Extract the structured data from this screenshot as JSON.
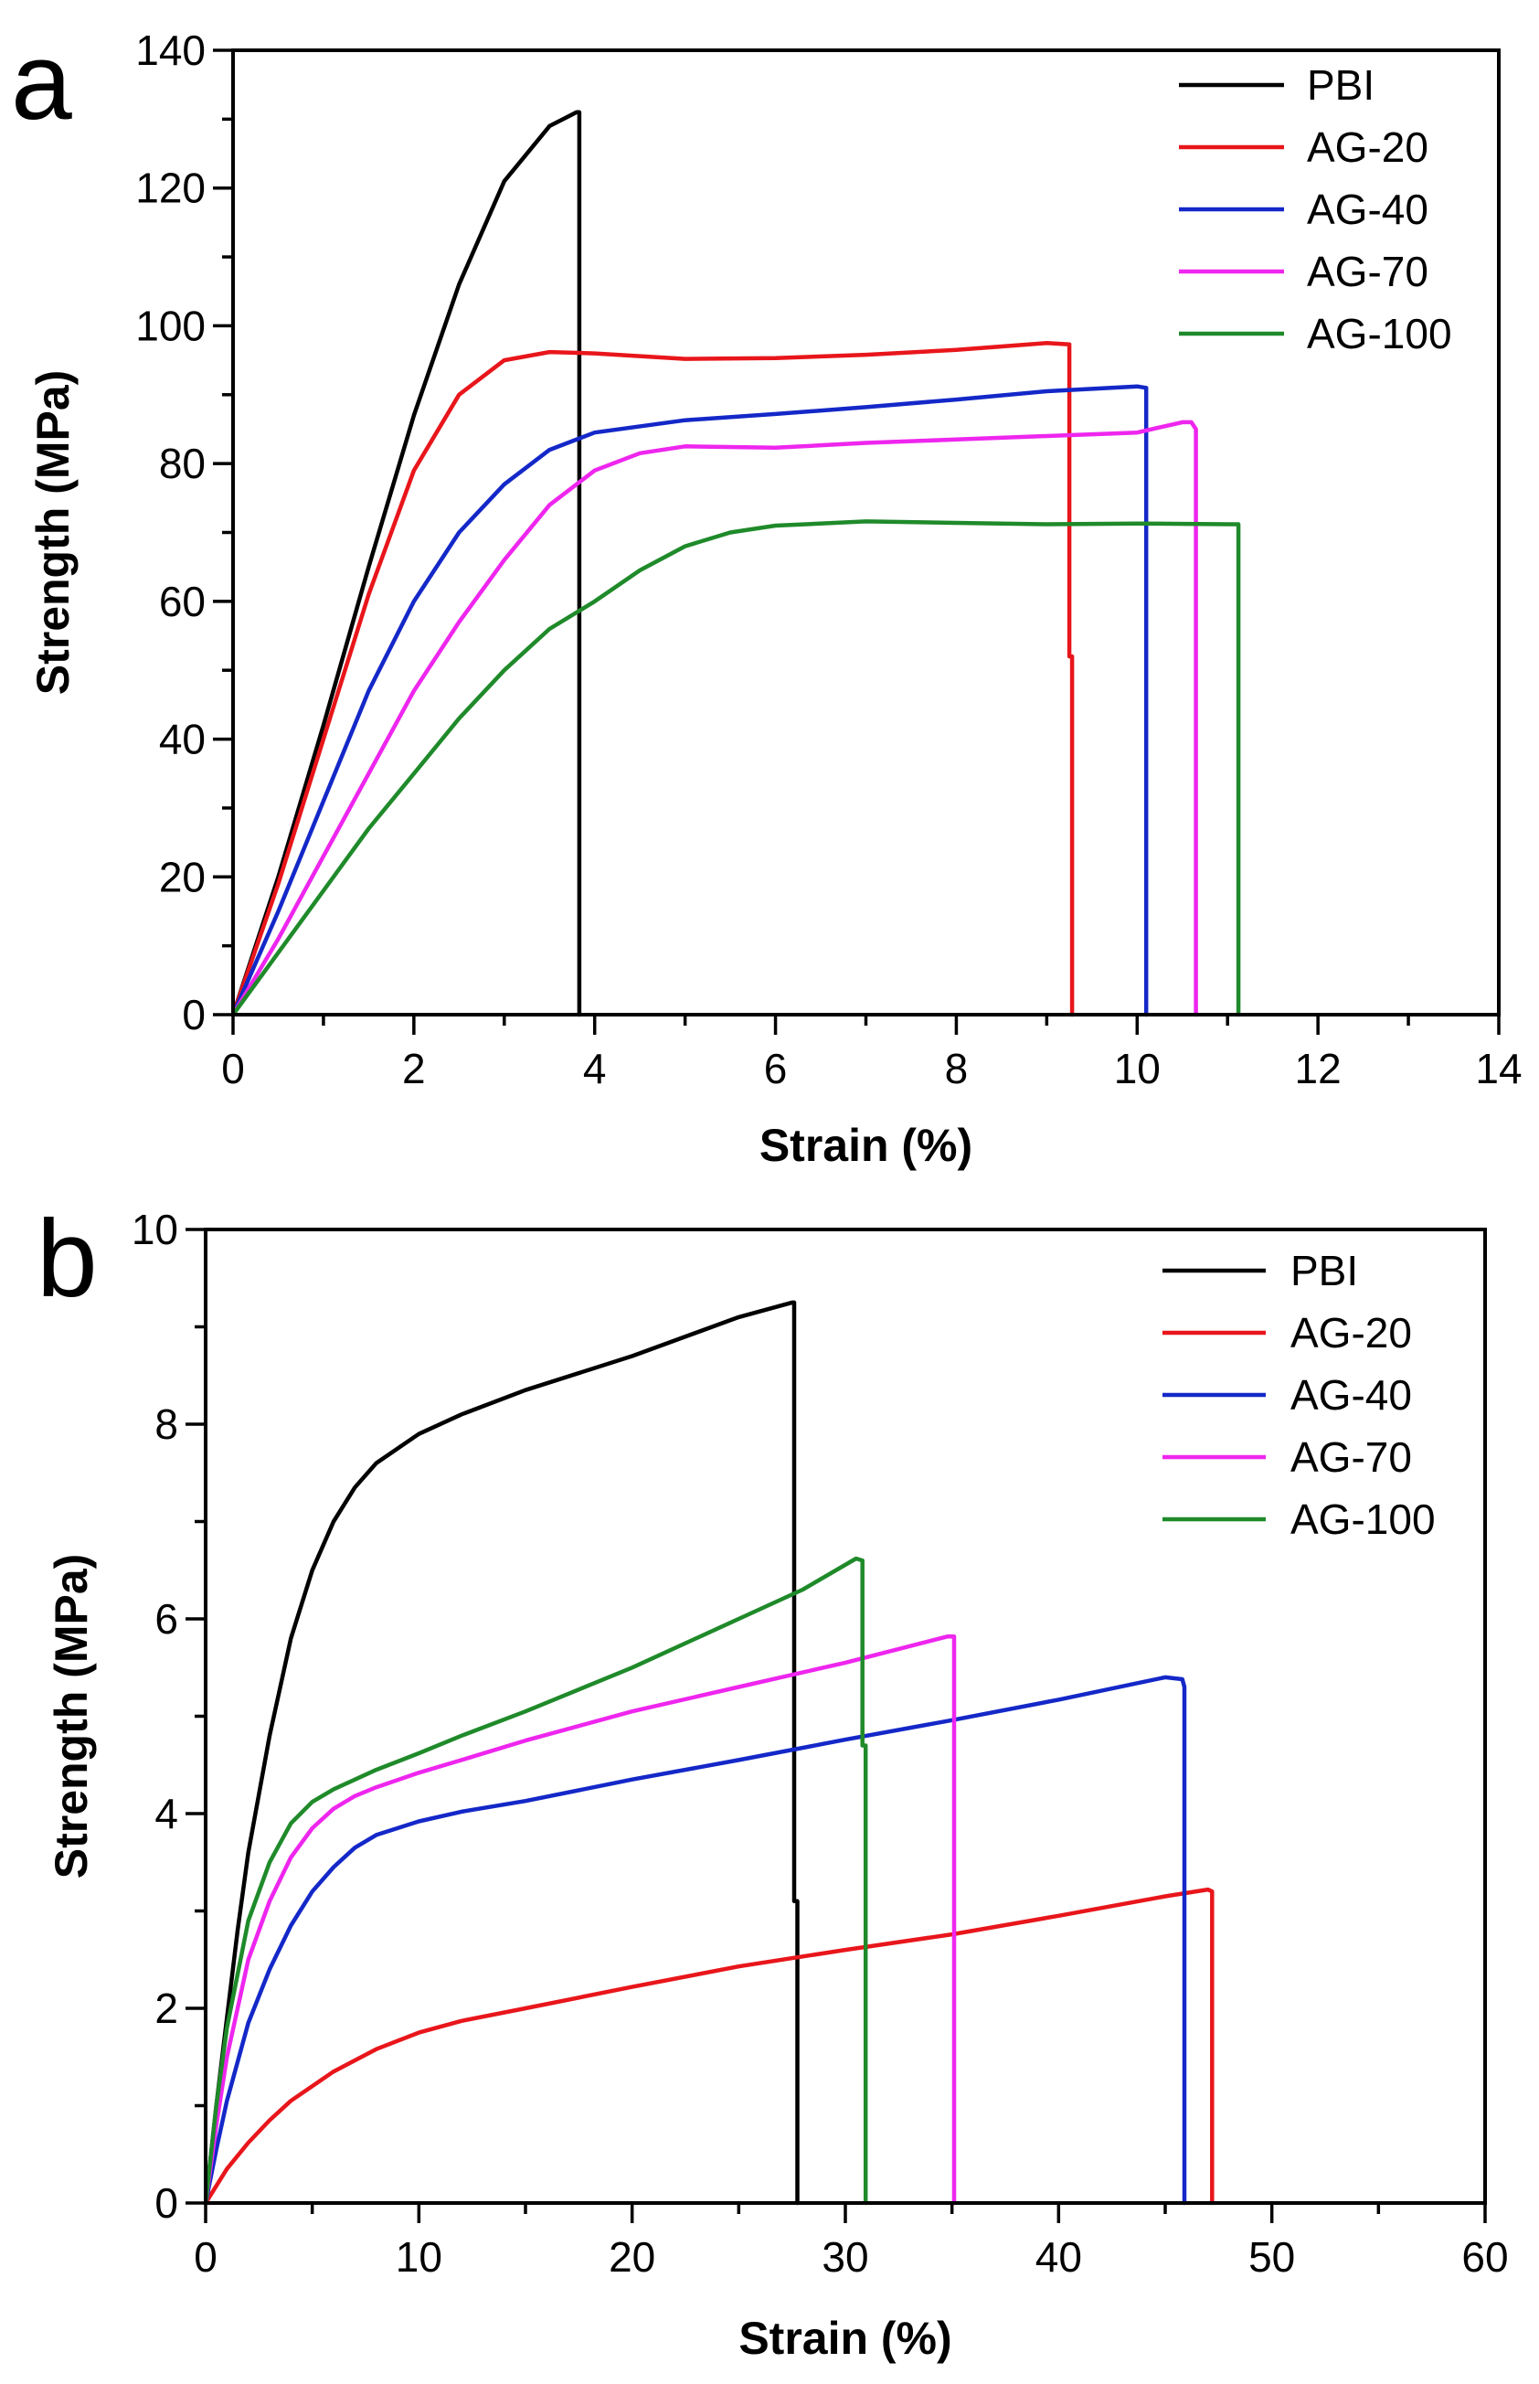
{
  "figure": {
    "panels": [
      "a",
      "b"
    ]
  },
  "chart_data": [
    {
      "panel": "a",
      "type": "line",
      "xlabel": "Strain (%)",
      "ylabel": "Strength (MPa)",
      "xlim": [
        0,
        14
      ],
      "ylim": [
        0,
        140
      ],
      "xticks": [
        0,
        2,
        4,
        6,
        8,
        10,
        12,
        14
      ],
      "yticks": [
        0,
        20,
        40,
        60,
        80,
        100,
        120,
        140
      ],
      "legend_position": "top-right",
      "series": [
        {
          "name": "PBI",
          "color": "#000000",
          "x": [
            0,
            0.5,
            1.0,
            1.5,
            2.0,
            2.5,
            3.0,
            3.5,
            3.8,
            3.83,
            3.83
          ],
          "y": [
            0,
            20,
            42,
            65,
            87,
            106,
            121,
            129,
            131,
            131,
            0
          ]
        },
        {
          "name": "AG-20",
          "color": "#e8161b",
          "x": [
            0,
            0.5,
            1.0,
            1.5,
            2.0,
            2.5,
            3.0,
            3.5,
            4.0,
            5.0,
            6.0,
            7.0,
            8.0,
            9.0,
            9.25,
            9.25,
            9.28,
            9.28
          ],
          "y": [
            0,
            19,
            40,
            61,
            79,
            90,
            95,
            96.2,
            96,
            95.2,
            95.3,
            95.8,
            96.5,
            97.5,
            97.3,
            52,
            52,
            0
          ]
        },
        {
          "name": "AG-40",
          "color": "#1428c8",
          "x": [
            0,
            0.5,
            1.0,
            1.5,
            2.0,
            2.5,
            3.0,
            3.5,
            4.0,
            5.0,
            6.0,
            7.0,
            8.0,
            9.0,
            10.0,
            10.1,
            10.1
          ],
          "y": [
            0,
            15,
            31,
            47,
            60,
            70,
            77,
            82,
            84.5,
            86.3,
            87.2,
            88.2,
            89.3,
            90.5,
            91.2,
            91,
            0
          ]
        },
        {
          "name": "AG-70",
          "color": "#ee26ee",
          "x": [
            0,
            0.5,
            1.0,
            1.5,
            2.0,
            2.5,
            3.0,
            3.5,
            4.0,
            4.5,
            5.0,
            6.0,
            7.0,
            8.0,
            9.0,
            10.0,
            10.5,
            10.6,
            10.65,
            10.65
          ],
          "y": [
            0,
            11,
            23,
            35,
            47,
            57,
            66,
            74,
            79,
            81.5,
            82.5,
            82.3,
            83,
            83.5,
            84,
            84.5,
            86,
            86,
            85,
            0
          ]
        },
        {
          "name": "AG-100",
          "color": "#1f8a2a",
          "x": [
            0,
            0.5,
            1.0,
            1.5,
            2.0,
            2.5,
            3.0,
            3.5,
            4.0,
            4.5,
            5.0,
            5.5,
            6.0,
            7.0,
            8.0,
            9.0,
            10.0,
            11.0,
            11.12,
            11.12
          ],
          "y": [
            0,
            9,
            18,
            27,
            35,
            43,
            50,
            56,
            60,
            64.5,
            68,
            70,
            71,
            71.6,
            71.4,
            71.2,
            71.3,
            71.2,
            71.2,
            0
          ]
        }
      ]
    },
    {
      "panel": "b",
      "type": "line",
      "xlabel": "Strain (%)",
      "ylabel": "Strength (MPa)",
      "xlim": [
        0,
        60
      ],
      "ylim": [
        0,
        10
      ],
      "xticks": [
        0,
        10,
        20,
        30,
        40,
        50,
        60
      ],
      "yticks": [
        0,
        2,
        4,
        6,
        8,
        10
      ],
      "legend_position": "top-right",
      "series": [
        {
          "name": "PBI",
          "color": "#000000",
          "x": [
            0,
            0.5,
            1,
            1.5,
            2,
            3,
            4,
            5,
            6,
            7,
            8,
            10,
            12,
            15,
            20,
            25,
            27.5,
            27.6,
            27.6,
            27.75,
            27.75
          ],
          "y": [
            0,
            1.0,
            1.9,
            2.8,
            3.6,
            4.8,
            5.8,
            6.5,
            7.0,
            7.35,
            7.6,
            7.9,
            8.1,
            8.35,
            8.7,
            9.1,
            9.25,
            9.25,
            3.1,
            3.1,
            0
          ]
        },
        {
          "name": "AG-20",
          "color": "#e8161b",
          "x": [
            0,
            1,
            2,
            3,
            4,
            6,
            8,
            10,
            12,
            15,
            20,
            25,
            30,
            35,
            40,
            45,
            47,
            47.2,
            47.2
          ],
          "y": [
            0,
            0.35,
            0.62,
            0.85,
            1.05,
            1.35,
            1.58,
            1.75,
            1.87,
            2.0,
            2.22,
            2.43,
            2.6,
            2.76,
            2.95,
            3.15,
            3.22,
            3.2,
            0
          ]
        },
        {
          "name": "AG-40",
          "color": "#1428c8",
          "x": [
            0,
            0.5,
            1,
            2,
            3,
            4,
            5,
            6,
            7,
            8,
            10,
            12,
            15,
            20,
            25,
            30,
            35,
            40,
            45,
            45.8,
            45.9,
            45.9
          ],
          "y": [
            0,
            0.55,
            1.05,
            1.85,
            2.4,
            2.85,
            3.2,
            3.45,
            3.65,
            3.78,
            3.92,
            4.02,
            4.13,
            4.35,
            4.55,
            4.76,
            4.96,
            5.17,
            5.4,
            5.38,
            5.3,
            0
          ]
        },
        {
          "name": "AG-70",
          "color": "#ee26ee",
          "x": [
            0,
            0.5,
            1,
            2,
            3,
            4,
            5,
            6,
            7,
            8,
            10,
            12,
            15,
            20,
            25,
            30,
            34.8,
            35.1,
            35.1
          ],
          "y": [
            0,
            0.8,
            1.5,
            2.5,
            3.1,
            3.55,
            3.85,
            4.05,
            4.18,
            4.27,
            4.42,
            4.55,
            4.75,
            5.05,
            5.3,
            5.55,
            5.82,
            5.82,
            0
          ]
        },
        {
          "name": "AG-100",
          "color": "#1f8a2a",
          "x": [
            0,
            0.5,
            1,
            2,
            3,
            4,
            5,
            6,
            8,
            10,
            12,
            15,
            20,
            25,
            28,
            30.5,
            30.8,
            30.8,
            30.95,
            30.95
          ],
          "y": [
            0,
            1.0,
            1.8,
            2.9,
            3.5,
            3.9,
            4.12,
            4.25,
            4.45,
            4.62,
            4.8,
            5.05,
            5.5,
            6.0,
            6.3,
            6.62,
            6.6,
            4.7,
            4.7,
            0
          ]
        }
      ]
    }
  ]
}
